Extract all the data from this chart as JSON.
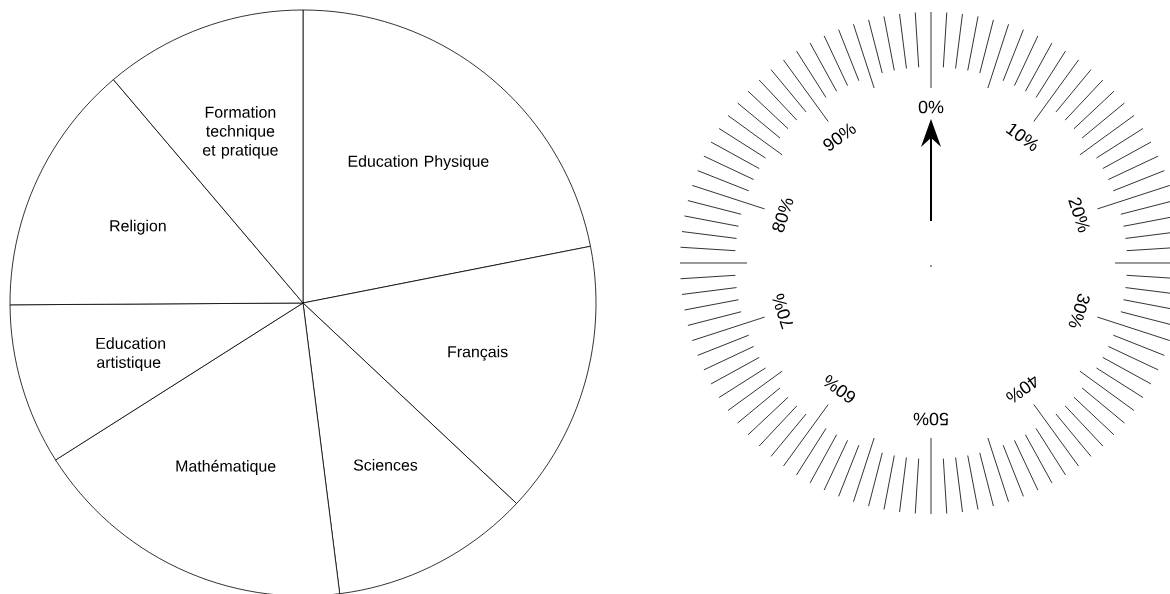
{
  "chart_data": [
    {
      "type": "pie",
      "categories": [
        "Education Physique",
        "Français",
        "Sciences",
        "Mathématique",
        "Education artistique",
        "Religion",
        "Formation technique et pratique"
      ],
      "values": [
        21.9,
        15.1,
        11.0,
        18.0,
        8.9,
        13.9,
        11.2
      ],
      "colors": [
        "#ffffff",
        "#ffffff",
        "#ffffff",
        "#ffffff",
        "#ffffff",
        "#ffffff",
        "#ffffff"
      ]
    },
    {
      "type": "other",
      "annotations": [
        "0%",
        "10%",
        "20%",
        "30%",
        "40%",
        "50%",
        "60%",
        "70%",
        "80%",
        "90%"
      ]
    }
  ]
}
